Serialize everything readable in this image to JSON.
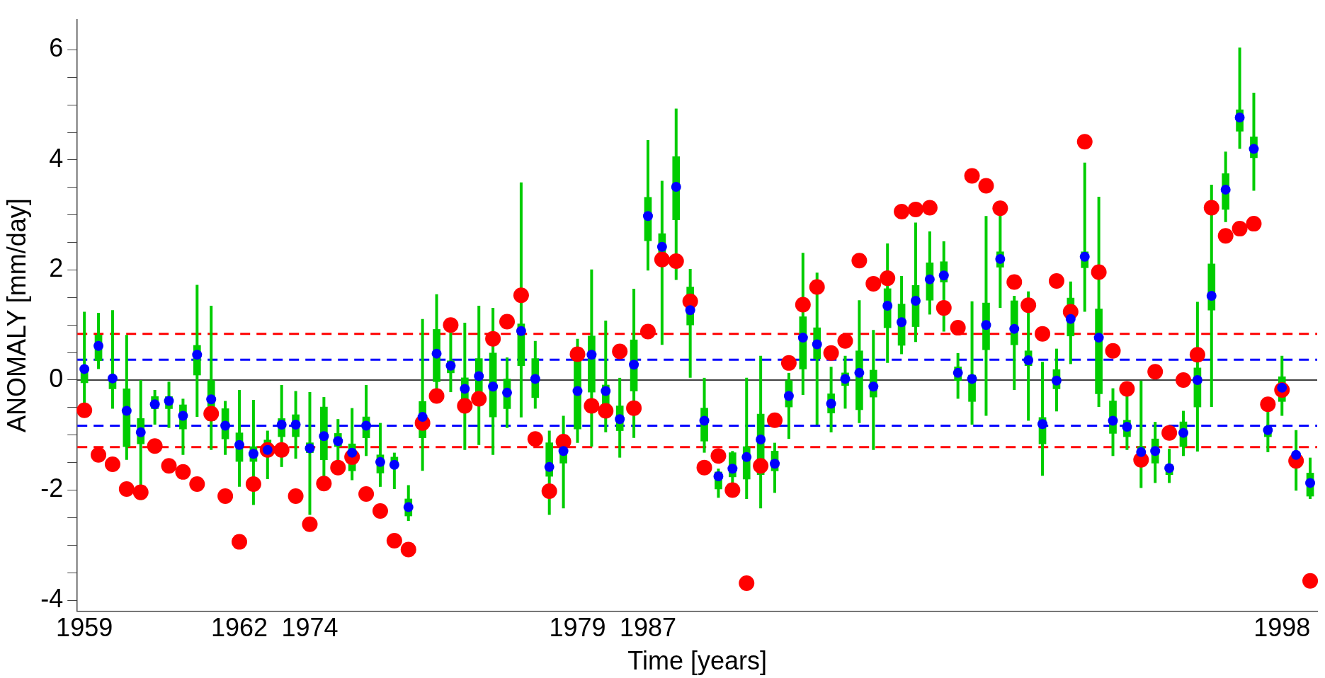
{
  "chart_data": {
    "type": "box",
    "xlabel": "Time [years]",
    "ylabel": "ANOMALY [mm/day]",
    "categories": [
      "1959",
      null,
      null,
      null,
      null,
      null,
      null,
      null,
      null,
      null,
      null,
      "1962",
      null,
      null,
      null,
      null,
      "1974",
      null,
      null,
      null,
      null,
      null,
      null,
      null,
      null,
      null,
      null,
      null,
      null,
      null,
      null,
      null,
      null,
      null,
      null,
      "1979",
      null,
      null,
      null,
      null,
      "1987",
      null,
      null,
      null,
      null,
      null,
      null,
      null,
      null,
      null,
      null,
      null,
      null,
      null,
      null,
      null,
      null,
      null,
      null,
      null,
      null,
      null,
      null,
      null,
      null,
      null,
      null,
      null,
      null,
      null,
      null,
      null,
      null,
      null,
      null,
      null,
      null,
      null,
      null,
      null,
      null,
      null,
      null,
      null,
      null,
      "1998",
      null,
      null
    ],
    "ylim": [
      -4.2,
      6.55
    ],
    "yticks": [
      -4,
      {
        "value": -3.5,
        "label": null
      },
      {
        "value": -3,
        "label": null
      },
      {
        "value": -2.5,
        "label": null
      },
      -2,
      {
        "value": -1.5,
        "label": null
      },
      {
        "value": -1,
        "label": null
      },
      {
        "value": -0.5,
        "label": null
      },
      0,
      {
        "value": 0.5,
        "label": null
      },
      {
        "value": 1,
        "label": null
      },
      {
        "value": 1.5,
        "label": null
      },
      2,
      {
        "value": 2.5,
        "label": null
      },
      {
        "value": 3,
        "label": null
      },
      {
        "value": 3.5,
        "label": null
      },
      4,
      {
        "value": 4.5,
        "label": null
      },
      {
        "value": 5,
        "label": null
      },
      {
        "value": 5.5,
        "label": null
      },
      6
    ],
    "marker": "circle",
    "ref_lines": [
      {
        "axis": "y",
        "value": 0,
        "color": "#000000",
        "line_style": "solid"
      },
      {
        "axis": "y",
        "value": 0.84,
        "color": "#ff0000",
        "line_style": "dashed"
      },
      {
        "axis": "y",
        "value": -1.22,
        "color": "#ff0000",
        "line_style": "dashed"
      },
      {
        "axis": "y",
        "value": 0.37,
        "color": "#0000ff",
        "line_style": "dashed"
      },
      {
        "axis": "y",
        "value": -0.83,
        "color": "#0000ff",
        "line_style": "dashed"
      }
    ],
    "series": [
      {
        "color": "#00cc00",
        "boxes": [
          {
            "low": -0.5,
            "q1": -0.05,
            "median": 0.2,
            "q3": 0.22,
            "high": 1.24
          },
          {
            "low": 0.2,
            "q1": 0.35,
            "median": 0.62,
            "q3": 0.82,
            "high": 1.22
          },
          {
            "low": -0.52,
            "q1": -0.16,
            "median": 0.03,
            "q3": 0.06,
            "high": 1.27
          },
          {
            "low": -1.45,
            "q1": -1.21,
            "median": -0.56,
            "q3": -0.16,
            "high": 0.82
          },
          {
            "low": -2.18,
            "q1": -1.16,
            "median": -0.95,
            "q3": -0.7,
            "high": 0
          },
          {
            "low": -0.81,
            "q1": -0.52,
            "median": -0.44,
            "q3": -0.3,
            "high": -0.18
          },
          {
            "low": -0.87,
            "q1": -0.52,
            "median": -0.38,
            "q3": -0.3,
            "high": -0.03
          },
          {
            "low": -1.36,
            "q1": -0.89,
            "median": -0.65,
            "q3": -0.45,
            "high": -0.34
          },
          {
            "low": -0.67,
            "q1": 0.09,
            "median": 0.46,
            "q3": 0.63,
            "high": 1.73
          },
          {
            "low": -1.27,
            "q1": -0.74,
            "median": -0.35,
            "q3": -0.01,
            "high": 1.35
          },
          {
            "low": -1.36,
            "q1": -1.07,
            "median": -0.83,
            "q3": -0.52,
            "high": -0.38
          },
          {
            "low": -1.94,
            "q1": -1.48,
            "median": -1.18,
            "q3": -0.96,
            "high": -0.18
          },
          {
            "low": -2.27,
            "q1": -1.48,
            "median": -1.34,
            "q3": -1.21,
            "high": -0.36
          },
          {
            "low": -1.8,
            "q1": -1.3,
            "median": -1.27,
            "q3": -1.09,
            "high": -0.92
          },
          {
            "low": -1.58,
            "q1": -1.03,
            "median": -0.81,
            "q3": -0.7,
            "high": -0.09
          },
          {
            "low": -1.43,
            "q1": -1.03,
            "median": -0.81,
            "q3": -0.63,
            "high": -0.2
          },
          {
            "low": -2.45,
            "q1": -1.32,
            "median": -1.24,
            "q3": -1.14,
            "high": -0.22
          },
          {
            "low": -1.8,
            "q1": -1.45,
            "median": -1.02,
            "q3": -0.49,
            "high": -0.31
          },
          {
            "low": -1.54,
            "q1": -1.21,
            "median": -1.11,
            "q3": -0.97,
            "high": -0.71
          },
          {
            "low": -1.82,
            "q1": -1.65,
            "median": -1.32,
            "q3": -1.16,
            "high": -0.51
          },
          {
            "low": -1.38,
            "q1": -1.05,
            "median": -0.83,
            "q3": -0.67,
            "high": -0.09
          },
          {
            "low": -1.94,
            "q1": -1.69,
            "median": -1.49,
            "q3": -1.36,
            "high": -0.78
          },
          {
            "low": -1.98,
            "q1": -1.58,
            "median": -1.54,
            "q3": -1.4,
            "high": -1.32
          },
          {
            "low": -2.56,
            "q1": -2.47,
            "median": -2.31,
            "q3": -2.16,
            "high": -1.91
          },
          {
            "low": -1.65,
            "q1": -1.05,
            "median": -0.67,
            "q3": -0.39,
            "high": 1.11
          },
          {
            "low": -0.41,
            "q1": -0.03,
            "median": 0.48,
            "q3": 0.92,
            "high": 1.56
          },
          {
            "low": -0.22,
            "q1": 0.13,
            "median": 0.26,
            "q3": 0.35,
            "high": 0.86
          },
          {
            "low": -1.27,
            "q1": -0.36,
            "median": -0.16,
            "q3": 0.04,
            "high": 1.04
          },
          {
            "low": -1.18,
            "q1": -0.27,
            "median": 0.07,
            "q3": 0.39,
            "high": 1.35
          },
          {
            "low": -1.36,
            "q1": -0.67,
            "median": -0.12,
            "q3": 0.49,
            "high": 1.31
          },
          {
            "low": -0.87,
            "q1": -0.52,
            "median": -0.23,
            "q3": 0.02,
            "high": 0.41
          },
          {
            "low": -0.68,
            "q1": 0.26,
            "median": 0.89,
            "q3": 1.02,
            "high": 3.59
          },
          {
            "low": -0.52,
            "q1": -0.32,
            "median": 0.02,
            "q3": 0.39,
            "high": 0.71
          },
          {
            "low": -2.45,
            "q1": -1.75,
            "median": -1.58,
            "q3": -1.14,
            "high": -0.92
          },
          {
            "low": -2.33,
            "q1": -1.51,
            "median": -1.29,
            "q3": -1.18,
            "high": -0.65
          },
          {
            "low": -1.14,
            "q1": -0.89,
            "median": -0.2,
            "q3": 0.39,
            "high": 0.75
          },
          {
            "low": -1.21,
            "q1": -0.22,
            "median": 0.46,
            "q3": 0.8,
            "high": 2.01
          },
          {
            "low": -0.95,
            "q1": -0.63,
            "median": -0.2,
            "q3": -0.09,
            "high": 1.08
          },
          {
            "low": -1.41,
            "q1": -0.92,
            "median": -0.71,
            "q3": -0.47,
            "high": 0.04
          },
          {
            "low": -1.05,
            "q1": -0.2,
            "median": 0.28,
            "q3": 0.73,
            "high": 1.66
          },
          {
            "low": 1.99,
            "q1": 2.53,
            "median": 2.98,
            "q3": 3.32,
            "high": 4.36
          },
          {
            "low": 0.64,
            "q1": 2.31,
            "median": 2.42,
            "q3": 2.66,
            "high": 3.62
          },
          {
            "low": 1.82,
            "q1": 2.91,
            "median": 3.51,
            "q3": 4.06,
            "high": 4.93
          },
          {
            "low": 0.04,
            "q1": 1.0,
            "median": 1.27,
            "q3": 1.69,
            "high": 2.02
          },
          {
            "low": -1.32,
            "q1": -1.11,
            "median": -0.74,
            "q3": -0.51,
            "high": 0.04
          },
          {
            "low": -2.14,
            "q1": -1.98,
            "median": -1.75,
            "q3": -1.67,
            "high": -1.61
          },
          {
            "low": -2.12,
            "q1": -1.76,
            "median": -1.61,
            "q3": -1.32,
            "high": -1.29
          },
          {
            "low": -2.16,
            "q1": -1.8,
            "median": -1.4,
            "q3": -1.21,
            "high": 0.04
          },
          {
            "low": -2.33,
            "q1": -1.72,
            "median": -1.08,
            "q3": -0.62,
            "high": 0.44
          },
          {
            "low": -2.05,
            "q1": -1.65,
            "median": -1.52,
            "q3": -1.29,
            "high": -1.14
          },
          {
            "low": -1.07,
            "q1": -0.49,
            "median": -0.29,
            "q3": -0.01,
            "high": 0.13
          },
          {
            "low": -0.27,
            "q1": 0.2,
            "median": 0.77,
            "q3": 1.15,
            "high": 2.31
          },
          {
            "low": -0.81,
            "q1": 0.39,
            "median": 0.65,
            "q3": 0.95,
            "high": 1.95
          },
          {
            "low": -0.95,
            "q1": -0.6,
            "median": -0.43,
            "q3": -0.25,
            "high": 0.24
          },
          {
            "low": -0.52,
            "q1": -0.1,
            "median": 0.02,
            "q3": 0.13,
            "high": 0.44
          },
          {
            "low": -0.78,
            "q1": -0.54,
            "median": 0.13,
            "q3": 0.53,
            "high": 1.45
          },
          {
            "low": -1.27,
            "q1": -0.31,
            "median": -0.12,
            "q3": 0.18,
            "high": 0.91
          },
          {
            "low": 0.31,
            "q1": 0.95,
            "median": 1.35,
            "q3": 1.66,
            "high": 2.48
          },
          {
            "low": 0.47,
            "q1": 0.63,
            "median": 1.05,
            "q3": 1.38,
            "high": 1.89
          },
          {
            "low": 0.69,
            "q1": 0.97,
            "median": 1.44,
            "q3": 1.72,
            "high": 2.86
          },
          {
            "low": 1.19,
            "q1": 1.45,
            "median": 1.83,
            "q3": 2.13,
            "high": 2.7
          },
          {
            "low": 0.88,
            "q1": 1.78,
            "median": 1.9,
            "q3": 2.15,
            "high": 2.52
          },
          {
            "low": -0.34,
            "q1": -0.01,
            "median": 0.13,
            "q3": 0.24,
            "high": 0.49
          },
          {
            "low": -0.81,
            "q1": -0.39,
            "median": 0.02,
            "q3": 0.09,
            "high": 1.43
          },
          {
            "low": -0.65,
            "q1": 0.55,
            "median": 1.0,
            "q3": 1.4,
            "high": 2.98
          },
          {
            "low": 1.31,
            "q1": 2.05,
            "median": 2.2,
            "q3": 2.33,
            "high": 3.11
          },
          {
            "low": -0.18,
            "q1": 0.64,
            "median": 0.93,
            "q3": 1.44,
            "high": 1.53
          },
          {
            "low": -0.74,
            "q1": 0.26,
            "median": 0.36,
            "q3": 0.53,
            "high": 1.61
          },
          {
            "low": -1.74,
            "q1": -1.16,
            "median": -0.8,
            "q3": -0.68,
            "high": 0.33
          },
          {
            "low": -0.57,
            "q1": -0.16,
            "median": -0.01,
            "q3": 0.19,
            "high": 0.57
          },
          {
            "low": 0.29,
            "q1": 0.8,
            "median": 1.11,
            "q3": 1.49,
            "high": 1.79
          },
          {
            "low": 1.24,
            "q1": 2.04,
            "median": 2.24,
            "q3": 2.33,
            "high": 3.95
          },
          {
            "low": -0.49,
            "q1": -0.25,
            "median": 0.77,
            "q3": 1.29,
            "high": 3.33
          },
          {
            "low": -1.38,
            "q1": -0.97,
            "median": -0.74,
            "q3": -0.38,
            "high": -0.15
          },
          {
            "low": -1.27,
            "q1": -1.03,
            "median": -0.85,
            "q3": -0.73,
            "high": -0.09
          },
          {
            "low": -1.96,
            "q1": -1.54,
            "median": -1.31,
            "q3": -1.21,
            "high": -0.01
          },
          {
            "low": -1.87,
            "q1": -1.51,
            "median": -1.29,
            "q3": -1.07,
            "high": -0.76
          },
          {
            "low": -1.87,
            "q1": -1.72,
            "median": -1.6,
            "q3": -1.54,
            "high": -1.25
          },
          {
            "low": -1.38,
            "q1": -1.21,
            "median": -0.96,
            "q3": -0.76,
            "high": -0.56
          },
          {
            "low": -1.3,
            "q1": -0.49,
            "median": 0.0,
            "q3": 0.22,
            "high": 1.42
          },
          {
            "low": -0.49,
            "q1": 1.27,
            "median": 1.53,
            "q3": 2.11,
            "high": 3.55
          },
          {
            "low": 2.87,
            "q1": 3.1,
            "median": 3.46,
            "q3": 3.75,
            "high": 4.15
          },
          {
            "low": 4.2,
            "q1": 4.52,
            "median": 4.77,
            "q3": 4.91,
            "high": 6.04
          },
          {
            "low": 3.44,
            "q1": 4.04,
            "median": 4.2,
            "q3": 4.42,
            "high": 5.22
          },
          {
            "low": -1.31,
            "q1": -1.03,
            "median": -0.91,
            "q3": -0.85,
            "high": -0.58
          },
          {
            "low": -0.65,
            "q1": -0.39,
            "median": -0.14,
            "q3": 0.06,
            "high": 0.44
          },
          {
            "low": -2.01,
            "q1": -1.54,
            "median": -1.36,
            "q3": -1.32,
            "high": -0.91
          },
          {
            "low": -2.16,
            "q1": -2.11,
            "median": -1.87,
            "q3": -1.69,
            "high": -1.41
          }
        ]
      },
      {
        "type": "scatter",
        "color": "#0000ff",
        "values": [
          0.2,
          0.62,
          0.03,
          -0.56,
          -0.95,
          -0.44,
          -0.38,
          -0.65,
          0.46,
          -0.35,
          -0.83,
          -1.18,
          -1.34,
          -1.27,
          -0.81,
          -0.81,
          -1.24,
          -1.02,
          -1.11,
          -1.32,
          -0.83,
          -1.49,
          -1.54,
          -2.31,
          -0.67,
          0.48,
          0.26,
          -0.16,
          0.07,
          -0.12,
          -0.23,
          0.89,
          0.02,
          -1.58,
          -1.29,
          -0.2,
          0.46,
          -0.2,
          -0.71,
          0.28,
          2.98,
          2.42,
          3.51,
          1.27,
          -0.74,
          -1.75,
          -1.61,
          -1.4,
          -1.08,
          -1.52,
          -0.29,
          0.77,
          0.65,
          -0.43,
          0.02,
          0.13,
          -0.12,
          1.35,
          1.05,
          1.44,
          1.83,
          1.9,
          0.13,
          0.02,
          1.0,
          2.2,
          0.93,
          0.36,
          -0.8,
          -0.01,
          1.11,
          2.24,
          0.77,
          -0.74,
          -0.85,
          -1.31,
          -1.29,
          -1.6,
          -0.96,
          0.0,
          1.53,
          3.46,
          4.77,
          4.2,
          -0.91,
          -0.14,
          -1.36,
          -1.87
        ]
      },
      {
        "type": "scatter",
        "color": "#ff0000",
        "values": [
          -0.55,
          -1.36,
          -1.53,
          -1.98,
          -2.04,
          -1.2,
          -1.56,
          -1.67,
          -1.89,
          -0.61,
          -2.11,
          -2.94,
          -1.89,
          -1.27,
          -1.27,
          -2.11,
          -2.62,
          -1.88,
          -1.59,
          -1.4,
          -2.07,
          -2.38,
          -2.92,
          -3.08,
          -0.78,
          -0.29,
          1.0,
          -0.47,
          -0.34,
          0.75,
          1.06,
          1.54,
          -1.07,
          -2.02,
          -1.12,
          0.47,
          -0.47,
          -0.56,
          0.52,
          -0.51,
          0.88,
          2.19,
          2.16,
          1.43,
          -1.59,
          -1.38,
          -2.0,
          -3.69,
          -1.56,
          -0.73,
          0.31,
          1.37,
          1.69,
          0.49,
          0.71,
          2.17,
          1.75,
          1.85,
          3.06,
          3.1,
          3.13,
          1.31,
          0.95,
          3.71,
          3.53,
          3.12,
          1.78,
          1.36,
          0.84,
          1.8,
          1.24,
          4.33,
          1.96,
          0.53,
          -0.16,
          -1.45,
          0.15,
          -0.96,
          0.0,
          0.46,
          3.13,
          2.62,
          2.75,
          2.84,
          -0.44,
          -0.18,
          -1.47,
          -3.65
        ]
      }
    ]
  }
}
